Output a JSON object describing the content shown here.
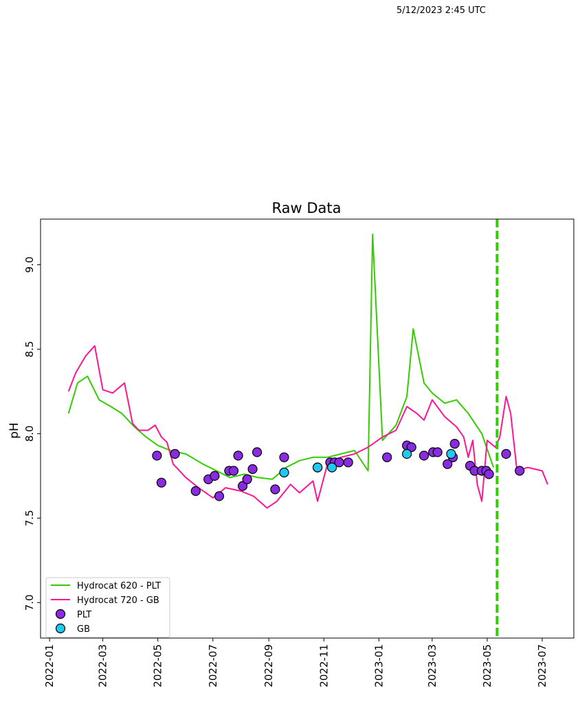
{
  "header": {
    "timestamp": "5/12/2023 2:45 UTC"
  },
  "chart_data": {
    "type": "line",
    "title": "Raw Data",
    "xlabel": "",
    "ylabel": "pH",
    "x_ticks": [
      "2022-01",
      "2022-03",
      "2022-05",
      "2022-07",
      "2022-09",
      "2022-11",
      "2023-01",
      "2023-03",
      "2023-05",
      "2023-07"
    ],
    "x_tick_dates": [
      "2022-01-01",
      "2022-03-01",
      "2022-05-01",
      "2022-07-01",
      "2022-09-01",
      "2022-11-01",
      "2023-01-01",
      "2023-03-01",
      "2023-05-01",
      "2023-07-01"
    ],
    "xlim": [
      "2021-12-22",
      "2023-08-05"
    ],
    "y_ticks": [
      "7.0",
      "7.5",
      "8.0",
      "8.5",
      "9.0"
    ],
    "y_tick_values": [
      7.0,
      7.5,
      8.0,
      8.5,
      9.0
    ],
    "ylim": [
      6.79,
      9.27
    ],
    "grid": false,
    "legend_position": "lower-left",
    "vline": {
      "date": "2023-05-12",
      "color": "#33cc00",
      "style": "dashed"
    },
    "series": [
      {
        "name": "Hydrocat 620 - PLT",
        "kind": "line",
        "color": "#33cc00",
        "x": [
          "2022-01-22",
          "2022-02-01",
          "2022-02-12",
          "2022-02-25",
          "2022-03-10",
          "2022-03-22",
          "2022-04-05",
          "2022-04-18",
          "2022-05-01",
          "2022-05-15",
          "2022-06-01",
          "2022-06-20",
          "2022-07-05",
          "2022-07-20",
          "2022-08-05",
          "2022-08-20",
          "2022-09-05",
          "2022-09-20",
          "2022-10-05",
          "2022-10-20",
          "2022-11-05",
          "2022-11-20",
          "2022-12-05",
          "2022-12-20",
          "2022-12-25",
          "2023-01-05",
          "2023-01-20",
          "2023-02-01",
          "2023-02-08",
          "2023-02-20",
          "2023-03-01",
          "2023-03-15",
          "2023-03-28",
          "2023-04-10",
          "2023-04-25",
          "2023-05-08"
        ],
        "y": [
          8.12,
          8.3,
          8.34,
          8.2,
          8.16,
          8.12,
          8.04,
          7.98,
          7.93,
          7.9,
          7.88,
          7.82,
          7.78,
          7.74,
          7.76,
          7.74,
          7.73,
          7.8,
          7.84,
          7.86,
          7.86,
          7.88,
          7.9,
          7.78,
          9.18,
          7.96,
          8.05,
          8.22,
          8.62,
          8.3,
          8.24,
          8.18,
          8.2,
          8.12,
          8.0,
          7.8
        ]
      },
      {
        "name": "Hydrocat 720 - GB",
        "kind": "line",
        "color": "#ff1493",
        "x": [
          "2022-01-22",
          "2022-01-30",
          "2022-02-10",
          "2022-02-20",
          "2022-03-01",
          "2022-03-12",
          "2022-03-25",
          "2022-04-03",
          "2022-04-10",
          "2022-04-20",
          "2022-04-28",
          "2022-05-05",
          "2022-05-11",
          "2022-05-18",
          "2022-06-01",
          "2022-06-15",
          "2022-07-01",
          "2022-07-15",
          "2022-08-01",
          "2022-08-15",
          "2022-08-30",
          "2022-09-10",
          "2022-09-25",
          "2022-10-05",
          "2022-10-20",
          "2022-10-25",
          "2022-11-05",
          "2022-11-20",
          "2022-12-05",
          "2022-12-20",
          "2023-01-05",
          "2023-01-20",
          "2023-02-01",
          "2023-02-12",
          "2023-02-20",
          "2023-03-01",
          "2023-03-15",
          "2023-03-28",
          "2023-04-05",
          "2023-04-10",
          "2023-04-15",
          "2023-04-20",
          "2023-04-25",
          "2023-05-01",
          "2023-05-10",
          "2023-05-15",
          "2023-05-22",
          "2023-05-27",
          "2023-06-03",
          "2023-06-15",
          "2023-07-01",
          "2023-07-07"
        ],
        "y": [
          8.25,
          8.36,
          8.46,
          8.52,
          8.26,
          8.24,
          8.3,
          8.06,
          8.02,
          8.02,
          8.05,
          7.98,
          7.95,
          7.82,
          7.74,
          7.68,
          7.62,
          7.68,
          7.66,
          7.63,
          7.56,
          7.6,
          7.7,
          7.65,
          7.72,
          7.6,
          7.82,
          7.86,
          7.88,
          7.92,
          7.98,
          8.02,
          8.16,
          8.12,
          8.08,
          8.2,
          8.1,
          8.04,
          7.98,
          7.86,
          7.96,
          7.7,
          7.6,
          7.96,
          7.92,
          7.98,
          8.22,
          8.12,
          7.78,
          7.8,
          7.78,
          7.7
        ]
      },
      {
        "name": "PLT",
        "kind": "scatter",
        "color": "#8a2be2",
        "x": [
          "2022-04-30",
          "2022-05-05",
          "2022-05-20",
          "2022-06-12",
          "2022-06-26",
          "2022-07-03",
          "2022-07-08",
          "2022-07-19",
          "2022-07-24",
          "2022-07-29",
          "2022-08-03",
          "2022-08-08",
          "2022-08-14",
          "2022-08-19",
          "2022-09-08",
          "2022-09-18",
          "2022-10-25",
          "2022-11-08",
          "2022-11-13",
          "2022-11-18",
          "2022-11-28",
          "2023-01-10",
          "2023-02-01",
          "2023-02-06",
          "2023-02-20",
          "2023-03-02",
          "2023-03-07",
          "2023-03-18",
          "2023-03-24",
          "2023-03-26",
          "2023-04-12",
          "2023-04-17",
          "2023-04-25",
          "2023-04-30",
          "2023-05-03",
          "2023-05-22",
          "2023-06-06"
        ],
        "y": [
          7.87,
          7.71,
          7.88,
          7.66,
          7.73,
          7.75,
          7.63,
          7.78,
          7.78,
          7.87,
          7.69,
          7.73,
          7.79,
          7.89,
          7.67,
          7.86,
          7.8,
          7.83,
          7.83,
          7.83,
          7.83,
          7.86,
          7.93,
          7.92,
          7.87,
          7.89,
          7.89,
          7.82,
          7.86,
          7.94,
          7.81,
          7.78,
          7.78,
          7.78,
          7.76,
          7.88,
          7.78
        ]
      },
      {
        "name": "GB",
        "kind": "scatter",
        "color": "#1fc9ef",
        "x": [
          "2022-09-18",
          "2022-10-25",
          "2022-11-10",
          "2023-02-01",
          "2023-03-22"
        ],
        "y": [
          7.77,
          7.8,
          7.8,
          7.88,
          7.88
        ]
      }
    ]
  }
}
